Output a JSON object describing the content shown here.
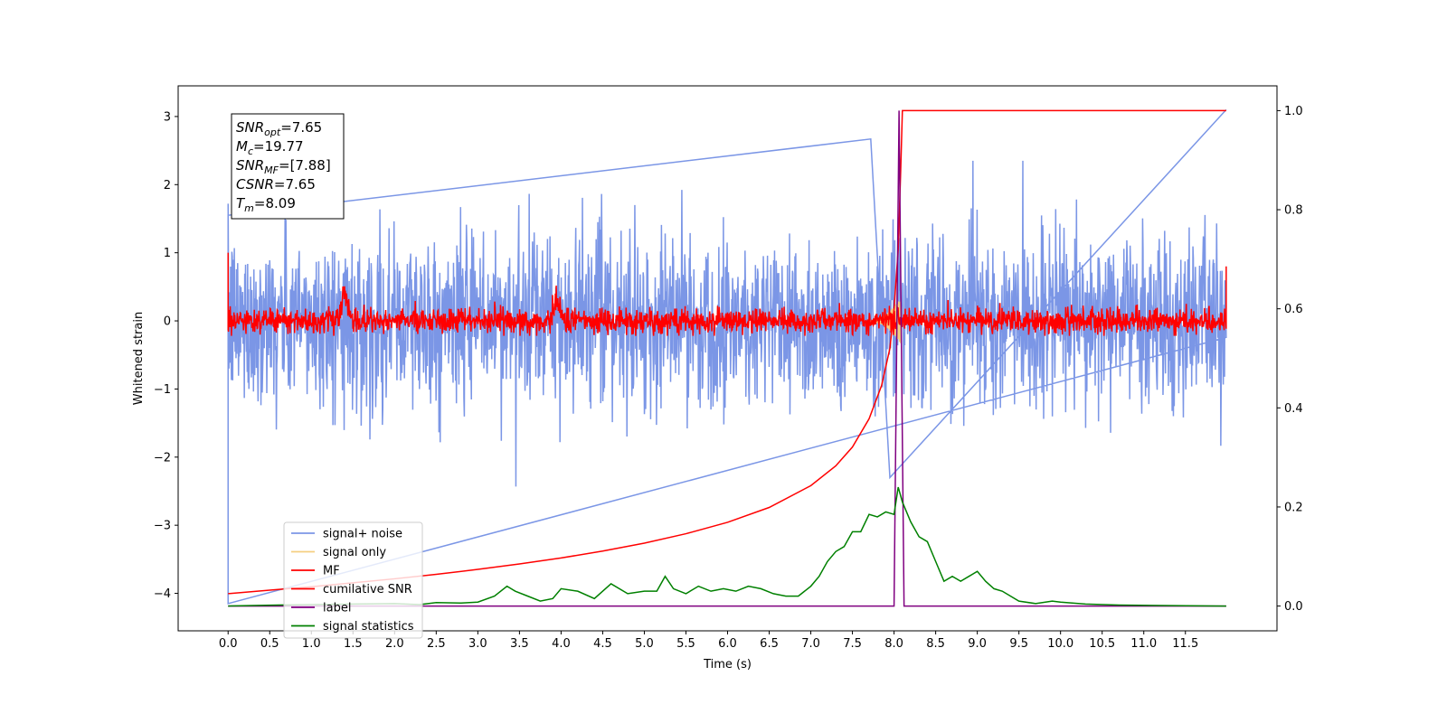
{
  "chart_data": {
    "type": "line",
    "xlabel": "Time (s)",
    "ylabel": "Whitened strain",
    "xlim": [
      -0.6,
      12.6
    ],
    "ylim": [
      -4.55,
      3.45
    ],
    "ylim_right": [
      -0.05,
      1.05
    ],
    "x_ticks": [
      0.0,
      0.5,
      1.0,
      1.5,
      2.0,
      2.5,
      3.0,
      3.5,
      4.0,
      4.5,
      5.0,
      5.5,
      6.0,
      6.5,
      7.0,
      7.5,
      8.0,
      8.5,
      9.0,
      9.5,
      10.0,
      10.5,
      11.0,
      11.5
    ],
    "x_tick_labels": [
      "0.0",
      "0.5",
      "1.0",
      "1.5",
      "2.0",
      "2.5",
      "3.0",
      "3.5",
      "4.0",
      "4.5",
      "5.0",
      "5.5",
      "6.0",
      "6.5",
      "7.0",
      "7.5",
      "8.0",
      "8.5",
      "9.0",
      "9.5",
      "10.0",
      "10.5",
      "11.0",
      "11.5"
    ],
    "y_ticks": [
      -4,
      -3,
      -2,
      -1,
      0,
      1,
      2,
      3
    ],
    "y_tick_labels": [
      "−4",
      "−3",
      "−2",
      "−1",
      "0",
      "1",
      "2",
      "3"
    ],
    "y2_ticks": [
      0.0,
      0.2,
      0.4,
      0.6,
      0.8,
      1.0
    ],
    "y2_tick_labels": [
      "0.0",
      "0.2",
      "0.4",
      "0.6",
      "0.8",
      "1.0"
    ],
    "legend_position": "lower-left",
    "legend": [
      {
        "label": "signal+ noise",
        "color": "#7b96e6"
      },
      {
        "label": "signal only",
        "color": "#f5cf80"
      },
      {
        "label": "MF",
        "color": "#ff0000"
      },
      {
        "label": "cumilative SNR",
        "color": "#ff0000"
      },
      {
        "label": "label",
        "color": "#800080"
      },
      {
        "label": "signal statistics",
        "color": "#008000"
      }
    ],
    "annotation": [
      {
        "base": "SNR",
        "sub": "opt",
        "rest": "=7.65"
      },
      {
        "base": "M",
        "sub": "c",
        "rest": "=19.77"
      },
      {
        "base": "SNR",
        "sub": "MF",
        "rest": "=[7.88]"
      },
      {
        "base": "CSNR",
        "sub": "",
        "rest": "=7.65"
      },
      {
        "base": "T",
        "sub": "m",
        "rest": "=8.09"
      }
    ],
    "series": [
      {
        "name": "signal+ noise",
        "axis": "left",
        "color": "#7b96e6",
        "style": "noise",
        "x_range": [
          0,
          11.99
        ],
        "mean": 0.0,
        "std": 0.62,
        "peak_annotations": [
          {
            "x": 0.0,
            "y": -4.15
          },
          {
            "x": 0.0,
            "y": 1.55
          },
          {
            "x": 7.72,
            "y": 2.67
          },
          {
            "x": 7.95,
            "y": -2.3
          },
          {
            "x": 11.99,
            "y": 3.1
          }
        ]
      },
      {
        "name": "signal only",
        "axis": "left",
        "color": "#f5cf80",
        "style": "chirp",
        "x_range": [
          7.7,
          8.09
        ],
        "amplitude": 0.35
      },
      {
        "name": "MF",
        "axis": "left",
        "color": "#ff0000",
        "style": "noise",
        "x_range": [
          0,
          11.99
        ],
        "mean": 0.0,
        "std": 0.09,
        "bumps": [
          {
            "x": 3.95,
            "y": 0.35
          },
          {
            "x": 1.4,
            "y": 0.55
          }
        ],
        "endpoints": {
          "start": 1.0,
          "end": 0.8
        }
      },
      {
        "name": "cumilative SNR",
        "axis": "right",
        "x": [
          0.0,
          0.5,
          1.0,
          1.5,
          2.0,
          2.5,
          3.0,
          3.5,
          4.0,
          4.5,
          5.0,
          5.5,
          6.0,
          6.5,
          7.0,
          7.3,
          7.5,
          7.7,
          7.85,
          7.95,
          8.0,
          8.05,
          8.08,
          8.1,
          11.99
        ],
        "y": [
          0.025,
          0.032,
          0.039,
          0.047,
          0.055,
          0.064,
          0.074,
          0.085,
          0.097,
          0.111,
          0.127,
          0.146,
          0.169,
          0.199,
          0.243,
          0.283,
          0.321,
          0.378,
          0.445,
          0.52,
          0.6,
          0.72,
          0.88,
          1.0,
          1.0
        ]
      },
      {
        "name": "label",
        "axis": "right",
        "x": [
          0.0,
          8.0,
          8.06,
          8.12,
          11.99
        ],
        "y": [
          0.0,
          0.0,
          1.0,
          0.0,
          0.0
        ]
      },
      {
        "name": "signal statistics",
        "axis": "right",
        "x": [
          0.0,
          0.3,
          0.6,
          1.0,
          1.5,
          2.0,
          2.3,
          2.5,
          2.8,
          3.0,
          3.2,
          3.35,
          3.45,
          3.6,
          3.75,
          3.9,
          4.0,
          4.2,
          4.4,
          4.6,
          4.8,
          5.0,
          5.15,
          5.25,
          5.35,
          5.5,
          5.65,
          5.8,
          5.95,
          6.1,
          6.25,
          6.4,
          6.55,
          6.7,
          6.85,
          7.0,
          7.1,
          7.2,
          7.3,
          7.4,
          7.5,
          7.6,
          7.7,
          7.8,
          7.9,
          8.0,
          8.05,
          8.1,
          8.2,
          8.3,
          8.4,
          8.5,
          8.6,
          8.7,
          8.8,
          8.9,
          9.0,
          9.1,
          9.2,
          9.3,
          9.5,
          9.7,
          9.9,
          10.0,
          10.3,
          10.7,
          11.2,
          11.99
        ],
        "y": [
          0.0,
          0.001,
          0.002,
          0.003,
          0.004,
          0.005,
          0.003,
          0.007,
          0.006,
          0.008,
          0.02,
          0.04,
          0.03,
          0.02,
          0.01,
          0.015,
          0.035,
          0.03,
          0.015,
          0.045,
          0.025,
          0.03,
          0.03,
          0.06,
          0.035,
          0.025,
          0.04,
          0.03,
          0.035,
          0.03,
          0.04,
          0.035,
          0.025,
          0.02,
          0.02,
          0.04,
          0.06,
          0.09,
          0.11,
          0.12,
          0.15,
          0.15,
          0.185,
          0.18,
          0.19,
          0.185,
          0.24,
          0.21,
          0.17,
          0.14,
          0.13,
          0.09,
          0.05,
          0.06,
          0.05,
          0.06,
          0.07,
          0.05,
          0.035,
          0.03,
          0.01,
          0.005,
          0.01,
          0.008,
          0.004,
          0.002,
          0.001,
          0.0
        ]
      }
    ]
  }
}
